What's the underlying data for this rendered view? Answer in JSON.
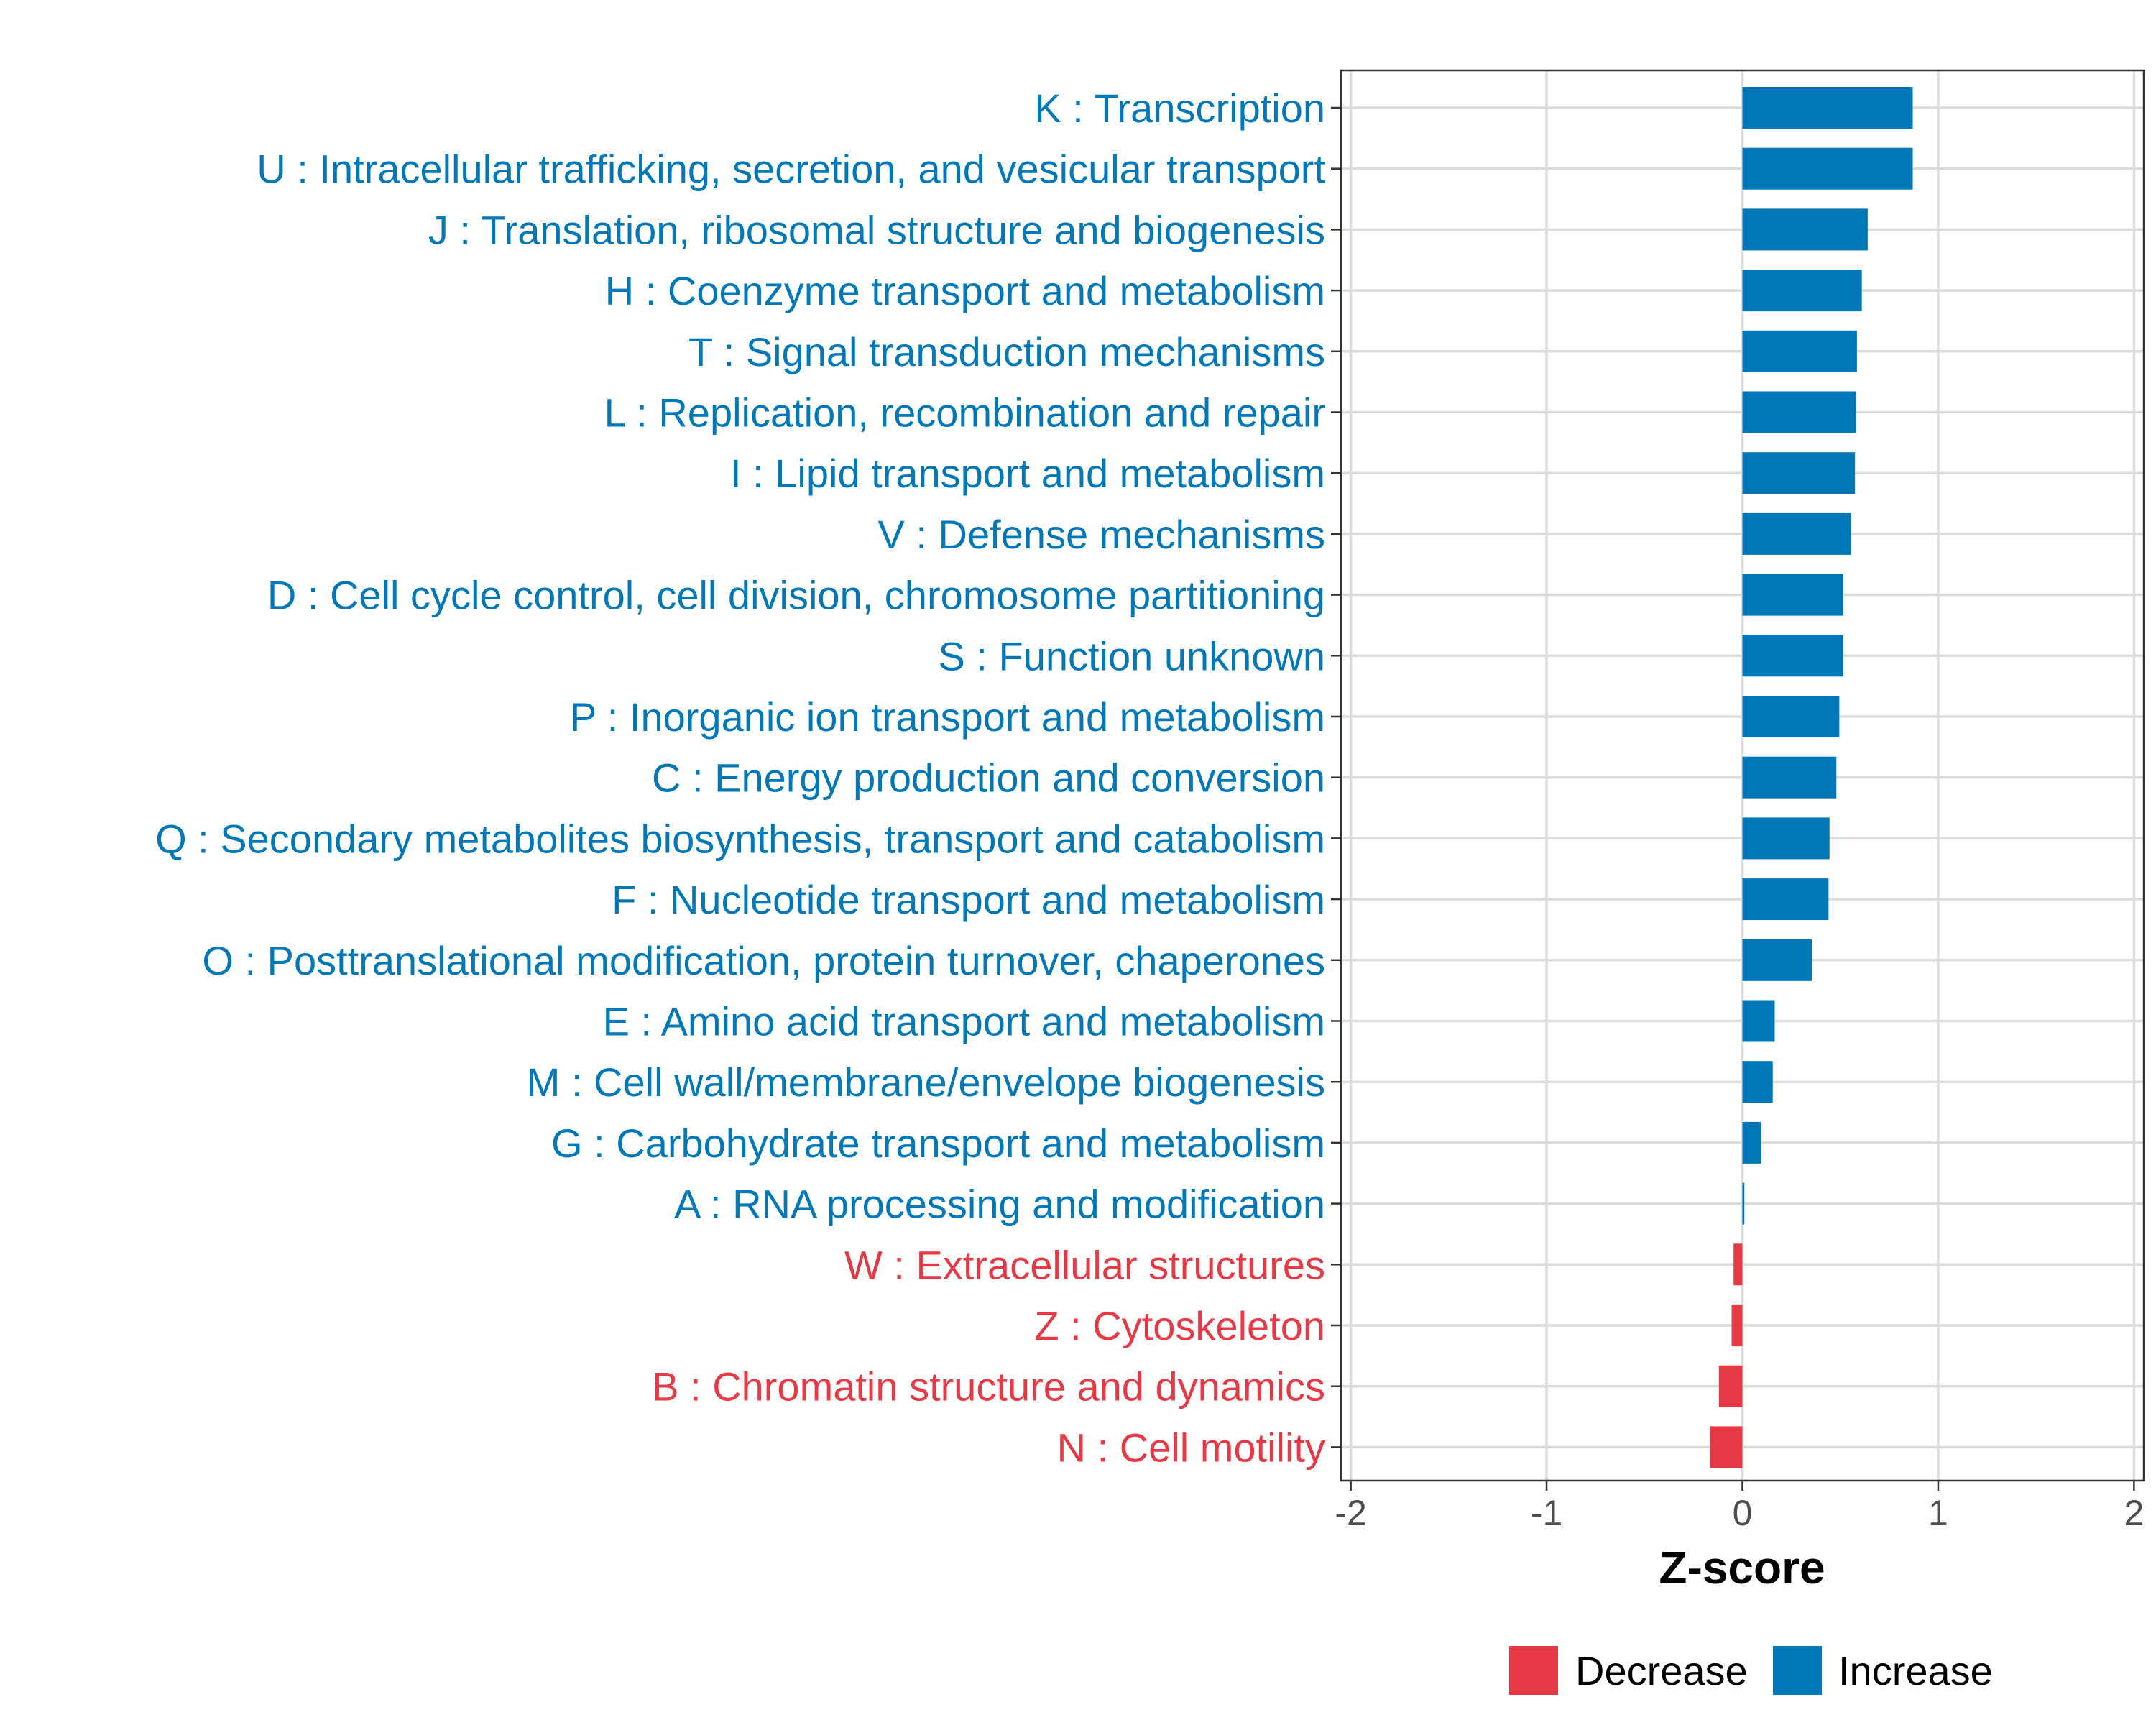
{
  "chart_data": {
    "type": "bar",
    "orientation": "horizontal",
    "xlabel": "Z-score",
    "xlim": [
      -2.05,
      2.05
    ],
    "xticks": [
      -2,
      -1,
      0,
      1,
      2
    ],
    "xtick_labels": [
      "-2",
      "-1",
      "0",
      "1",
      "2"
    ],
    "grid": true,
    "legend": {
      "position": "bottom",
      "entries": [
        {
          "key": "decrease",
          "label": "Decrease",
          "color": "#E63946"
        },
        {
          "key": "increase",
          "label": "Increase",
          "color": "#0077B6"
        }
      ]
    },
    "categories": [
      {
        "label": "K : Transcription",
        "value": 0.87,
        "direction": "increase"
      },
      {
        "label": "U : Intracellular trafficking, secretion, and vesicular transport",
        "value": 0.87,
        "direction": "increase"
      },
      {
        "label": "J : Translation, ribosomal structure and biogenesis",
        "value": 0.64,
        "direction": "increase"
      },
      {
        "label": "H : Coenzyme transport and metabolism",
        "value": 0.61,
        "direction": "increase"
      },
      {
        "label": "T : Signal transduction mechanisms",
        "value": 0.585,
        "direction": "increase"
      },
      {
        "label": "L : Replication, recombination and repair",
        "value": 0.58,
        "direction": "increase"
      },
      {
        "label": "I : Lipid transport and metabolism",
        "value": 0.575,
        "direction": "increase"
      },
      {
        "label": "V : Defense mechanisms",
        "value": 0.555,
        "direction": "increase"
      },
      {
        "label": "D : Cell cycle control, cell division, chromosome partitioning",
        "value": 0.515,
        "direction": "increase"
      },
      {
        "label": "S : Function unknown",
        "value": 0.515,
        "direction": "increase"
      },
      {
        "label": "P : Inorganic ion transport and metabolism",
        "value": 0.495,
        "direction": "increase"
      },
      {
        "label": "C : Energy production and conversion",
        "value": 0.48,
        "direction": "increase"
      },
      {
        "label": "Q : Secondary metabolites biosynthesis, transport and catabolism",
        "value": 0.445,
        "direction": "increase"
      },
      {
        "label": "F : Nucleotide transport and metabolism",
        "value": 0.44,
        "direction": "increase"
      },
      {
        "label": "O : Posttranslational modification, protein turnover, chaperones",
        "value": 0.355,
        "direction": "increase"
      },
      {
        "label": "E : Amino acid transport and metabolism",
        "value": 0.165,
        "direction": "increase"
      },
      {
        "label": "M : Cell wall/membrane/envelope biogenesis",
        "value": 0.155,
        "direction": "increase"
      },
      {
        "label": "G : Carbohydrate transport and metabolism",
        "value": 0.095,
        "direction": "increase"
      },
      {
        "label": "A : RNA processing and modification",
        "value": 0.01,
        "direction": "increase"
      },
      {
        "label": "W : Extracellular structures",
        "value": -0.045,
        "direction": "decrease"
      },
      {
        "label": "Z : Cytoskeleton",
        "value": -0.055,
        "direction": "decrease"
      },
      {
        "label": "B : Chromatin structure and dynamics",
        "value": -0.12,
        "direction": "decrease"
      },
      {
        "label": "N : Cell motility",
        "value": -0.165,
        "direction": "decrease"
      }
    ]
  }
}
